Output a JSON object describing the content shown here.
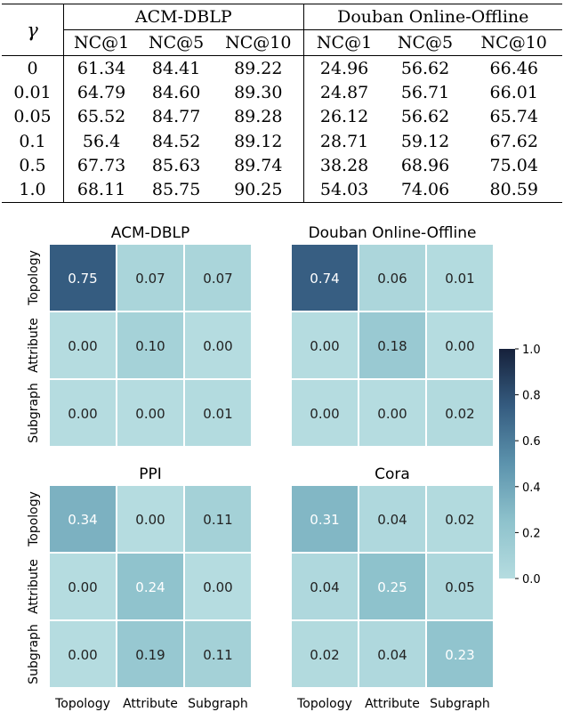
{
  "table": {
    "gamma_header": "γ",
    "groups": [
      "ACM-DBLP",
      "Douban Online-Offline"
    ],
    "metrics": [
      "NC@1",
      "NC@5",
      "NC@10"
    ],
    "rows": [
      {
        "gamma": "0",
        "values": [
          "61.34",
          "84.41",
          "89.22",
          "24.96",
          "56.62",
          "66.46"
        ],
        "bold": false
      },
      {
        "gamma": "0.01",
        "values": [
          "64.79",
          "84.60",
          "89.30",
          "24.87",
          "56.71",
          "66.01"
        ],
        "bold": false
      },
      {
        "gamma": "0.05",
        "values": [
          "65.52",
          "84.77",
          "89.28",
          "26.12",
          "56.62",
          "65.74"
        ],
        "bold": false
      },
      {
        "gamma": "0.1",
        "values": [
          "56.4",
          "84.52",
          "89.12",
          "28.71",
          "59.12",
          "67.62"
        ],
        "bold": false
      },
      {
        "gamma": "0.5",
        "values": [
          "67.73",
          "85.63",
          "89.74",
          "38.28",
          "68.96",
          "75.04"
        ],
        "bold": false
      },
      {
        "gamma": "1.0",
        "values": [
          "68.11",
          "85.75",
          "90.25",
          "54.03",
          "74.06",
          "80.59"
        ],
        "bold": true
      }
    ]
  },
  "chart_data": [
    {
      "type": "heatmap",
      "title": "ACM-DBLP",
      "x_labels": [
        "Topology",
        "Attribute",
        "Subgraph"
      ],
      "y_labels": [
        "Topology",
        "Attribute",
        "Subgraph"
      ],
      "values": [
        [
          0.75,
          0.07,
          0.07
        ],
        [
          0.0,
          0.1,
          0.0
        ],
        [
          0.0,
          0.0,
          0.01
        ]
      ],
      "cell_labels": [
        [
          "0.75",
          "0.07",
          "0.07"
        ],
        [
          "0.00",
          "0.10",
          "0.00"
        ],
        [
          "0.00",
          "0.00",
          "0.01"
        ]
      ],
      "show_x_labels": false,
      "show_y_labels": true,
      "vmin": 0.0,
      "vmax": 1.0
    },
    {
      "type": "heatmap",
      "title": "Douban Online-Offline",
      "x_labels": [
        "Topology",
        "Attribute",
        "Subgraph"
      ],
      "y_labels": [
        "Topology",
        "Attribute",
        "Subgraph"
      ],
      "values": [
        [
          0.74,
          0.06,
          0.01
        ],
        [
          0.0,
          0.18,
          0.0
        ],
        [
          0.0,
          0.0,
          0.02
        ]
      ],
      "cell_labels": [
        [
          "0.74",
          "0.06",
          "0.01"
        ],
        [
          "0.00",
          "0.18",
          "0.00"
        ],
        [
          "0.00",
          "0.00",
          "0.02"
        ]
      ],
      "show_x_labels": false,
      "show_y_labels": false,
      "vmin": 0.0,
      "vmax": 1.0
    },
    {
      "type": "heatmap",
      "title": "PPI",
      "x_labels": [
        "Topology",
        "Attribute",
        "Subgraph"
      ],
      "y_labels": [
        "Topology",
        "Attribute",
        "Subgraph"
      ],
      "values": [
        [
          0.34,
          0.0,
          0.11
        ],
        [
          0.0,
          0.24,
          0.0
        ],
        [
          0.0,
          0.19,
          0.11
        ]
      ],
      "cell_labels": [
        [
          "0.34",
          "0.00",
          "0.11"
        ],
        [
          "0.00",
          "0.24",
          "0.00"
        ],
        [
          "0.00",
          "0.19",
          "0.11"
        ]
      ],
      "show_x_labels": true,
      "show_y_labels": true,
      "vmin": 0.0,
      "vmax": 1.0
    },
    {
      "type": "heatmap",
      "title": "Cora",
      "x_labels": [
        "Topology",
        "Attribute",
        "Subgraph"
      ],
      "y_labels": [
        "Topology",
        "Attribute",
        "Subgraph"
      ],
      "values": [
        [
          0.31,
          0.04,
          0.02
        ],
        [
          0.04,
          0.25,
          0.05
        ],
        [
          0.02,
          0.04,
          0.23
        ]
      ],
      "cell_labels": [
        [
          "0.31",
          "0.04",
          "0.02"
        ],
        [
          "0.04",
          "0.25",
          "0.05"
        ],
        [
          "0.02",
          "0.04",
          "0.23"
        ]
      ],
      "show_x_labels": true,
      "show_y_labels": false,
      "vmin": 0.0,
      "vmax": 1.0
    }
  ],
  "colorbar": {
    "ticks": [
      "0.0",
      "0.2",
      "0.4",
      "0.6",
      "0.8",
      "1.0"
    ],
    "tick_values": [
      0.0,
      0.2,
      0.4,
      0.6,
      0.8,
      1.0
    ],
    "vmin": 0.0,
    "vmax": 1.0,
    "color_low": "#b5dce0",
    "color_high": "#16213b"
  },
  "colors": {
    "text_light": "#ffffff",
    "text_dark": "#222222",
    "cell_gap": "#ffffff"
  }
}
